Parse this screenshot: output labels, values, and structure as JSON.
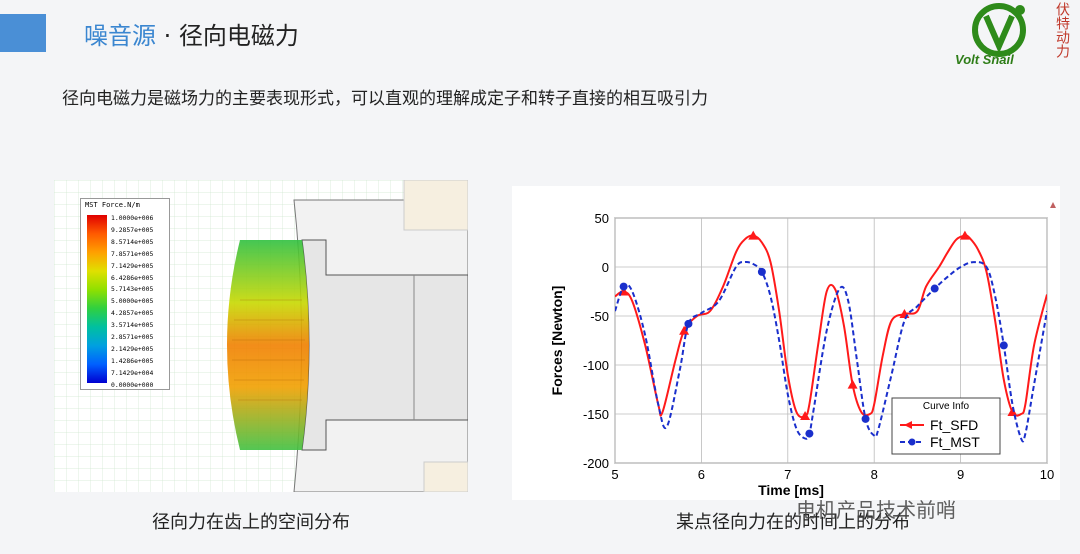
{
  "header": {
    "title_highlight": "噪音源",
    "title_rest": "· 径向电磁力"
  },
  "logo": {
    "word": "Volt Snail",
    "side_text": "伏特动力"
  },
  "subtitle": "径向电磁力是磁场力的主要表现形式，可以直观的理解成定子和转子直接的相互吸引力",
  "left_figure": {
    "legend_title": "MST Force.N/m",
    "legend_values": [
      "1.0000e+006",
      "9.2857e+005",
      "8.5714e+005",
      "7.8571e+005",
      "7.1429e+005",
      "6.4286e+005",
      "5.7143e+005",
      "5.0000e+005",
      "4.2857e+005",
      "3.5714e+005",
      "2.8571e+005",
      "2.1429e+005",
      "1.4286e+005",
      "7.1429e+004",
      "0.0000e+000"
    ],
    "caption": "径向力在齿上的空间分布"
  },
  "right_figure": {
    "caption": "某点径向力在的时间上的分布"
  },
  "watermark": "电机产品技术前哨",
  "colors": {
    "accent": "#4a8fd6",
    "sfd": "#ff1a1a",
    "mst": "#1a2fcc"
  },
  "chart_data": {
    "type": "line",
    "xlabel": "Time [ms]",
    "ylabel": "Forces [Newton]",
    "xlim": [
      5,
      10
    ],
    "ylim": [
      -200,
      50
    ],
    "xticks": [
      5,
      6,
      7,
      8,
      9,
      10
    ],
    "yticks": [
      50,
      0,
      -50,
      -100,
      -150,
      -200
    ],
    "grid": true,
    "legend_title": "Curve Info",
    "legend_position": "bottom-right",
    "series": [
      {
        "name": "Ft_SFD",
        "color": "#ff1a1a",
        "style": "solid",
        "marker": "triangle",
        "x": [
          5.0,
          5.1,
          5.2,
          5.35,
          5.5,
          5.55,
          5.7,
          5.8,
          5.95,
          6.1,
          6.25,
          6.4,
          6.5,
          6.6,
          6.7,
          6.8,
          6.9,
          7.0,
          7.1,
          7.2,
          7.25,
          7.35,
          7.45,
          7.55,
          7.65,
          7.75,
          7.85,
          7.95,
          8.0,
          8.1,
          8.2,
          8.35,
          8.5,
          8.6,
          8.75,
          8.85,
          8.95,
          9.05,
          9.1,
          9.2,
          9.3,
          9.4,
          9.5,
          9.6,
          9.7,
          9.75,
          9.85,
          10.0
        ],
        "y": [
          -30,
          -25,
          -35,
          -80,
          -140,
          -148,
          -95,
          -65,
          -50,
          -45,
          -20,
          15,
          28,
          32,
          25,
          5,
          -45,
          -110,
          -148,
          -152,
          -140,
          -80,
          -25,
          -23,
          -60,
          -120,
          -148,
          -150,
          -140,
          -90,
          -55,
          -48,
          -45,
          -20,
          0,
          15,
          28,
          32,
          30,
          18,
          -5,
          -55,
          -115,
          -148,
          -150,
          -140,
          -80,
          -28
        ]
      },
      {
        "name": "Ft_MST",
        "color": "#1a2fcc",
        "style": "dashed",
        "marker": "circle",
        "x": [
          5.0,
          5.1,
          5.2,
          5.35,
          5.5,
          5.6,
          5.75,
          5.85,
          6.0,
          6.2,
          6.4,
          6.5,
          6.6,
          6.7,
          6.8,
          6.9,
          7.0,
          7.1,
          7.2,
          7.25,
          7.3,
          7.45,
          7.6,
          7.7,
          7.8,
          7.9,
          8.0,
          8.05,
          8.2,
          8.35,
          8.5,
          8.7,
          8.85,
          9.0,
          9.15,
          9.3,
          9.4,
          9.5,
          9.6,
          9.7,
          9.75,
          9.85,
          10.0
        ],
        "y": [
          -45,
          -20,
          -25,
          -70,
          -140,
          -163,
          -105,
          -58,
          -47,
          -35,
          0,
          5,
          3,
          -5,
          -30,
          -75,
          -130,
          -165,
          -175,
          -170,
          -145,
          -65,
          -22,
          -35,
          -95,
          -155,
          -172,
          -165,
          -110,
          -55,
          -40,
          -22,
          -10,
          0,
          5,
          0,
          -30,
          -80,
          -140,
          -175,
          -170,
          -120,
          -45
        ]
      }
    ]
  }
}
